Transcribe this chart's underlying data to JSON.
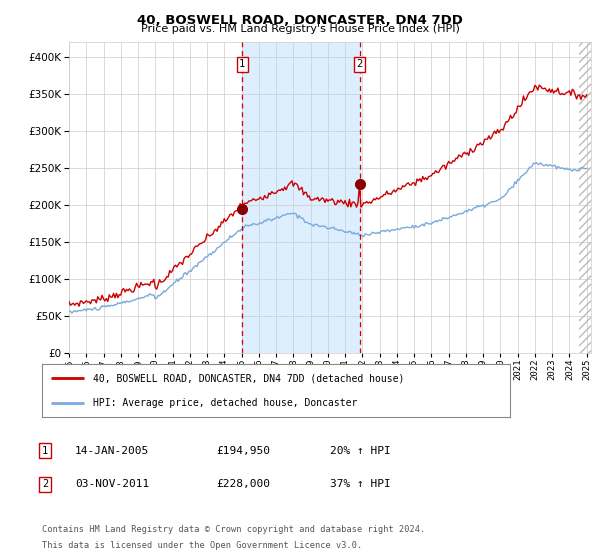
{
  "title": "40, BOSWELL ROAD, DONCASTER, DN4 7DD",
  "subtitle": "Price paid vs. HM Land Registry's House Price Index (HPI)",
  "legend_line1": "40, BOSWELL ROAD, DONCASTER, DN4 7DD (detached house)",
  "legend_line2": "HPI: Average price, detached house, Doncaster",
  "annotation1_date": "14-JAN-2005",
  "annotation1_price": "£194,950",
  "annotation1_hpi": "20% ↑ HPI",
  "annotation2_date": "03-NOV-2011",
  "annotation2_price": "£228,000",
  "annotation2_hpi": "37% ↑ HPI",
  "footnote1": "Contains HM Land Registry data © Crown copyright and database right 2024.",
  "footnote2": "This data is licensed under the Open Government Licence v3.0.",
  "hpi_color": "#7aaadd",
  "price_color": "#cc0000",
  "marker_color": "#880000",
  "vline_color": "#cc0000",
  "shade_color": "#ddeeff",
  "grid_color": "#cccccc",
  "bg_color": "#ffffff",
  "ylim": [
    0,
    420000
  ],
  "yticks": [
    0,
    50000,
    100000,
    150000,
    200000,
    250000,
    300000,
    350000,
    400000
  ],
  "event1_year": 2005.04,
  "event2_year": 2011.84,
  "event1_price": 194950,
  "event2_price": 228000
}
